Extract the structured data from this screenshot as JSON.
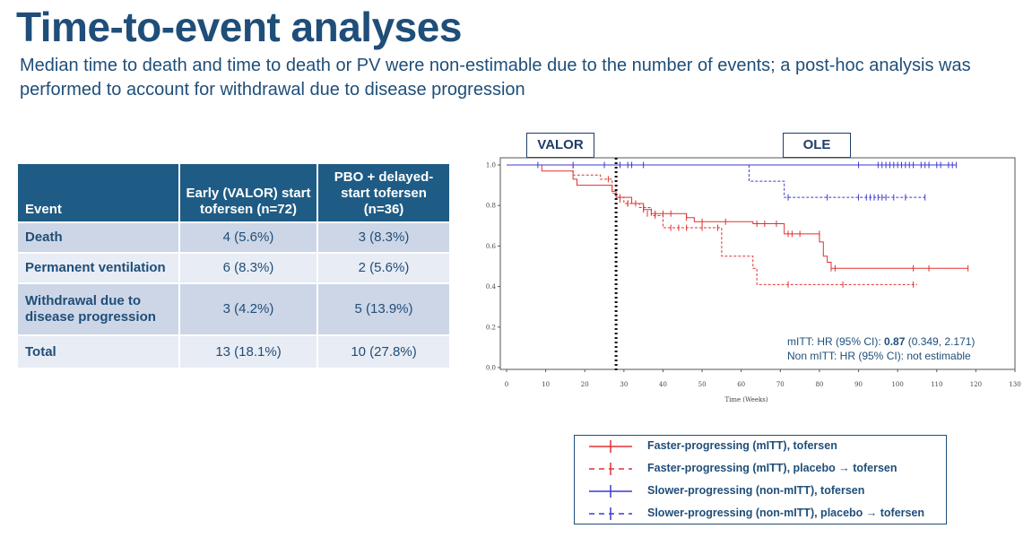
{
  "title": "Time-to-event analyses",
  "subtitle": "Median time to death and time to death or PV were non-estimable due to the number of events; a post-hoc analysis was performed to account for withdrawal due to disease progression",
  "table": {
    "headers": [
      "Event",
      "Early (VALOR) start tofersen (n=72)",
      "PBO + delayed-start tofersen (n=36)"
    ],
    "rows": [
      {
        "event": "Death",
        "early": "4 (5.6%)",
        "delayed": "3 (8.3%)"
      },
      {
        "event": "Permanent ventilation",
        "early": "6 (8.3%)",
        "delayed": "2 (5.6%)"
      },
      {
        "event": "Withdrawal due to disease progression",
        "early": "3 (4.2%)",
        "delayed": "5 (13.9%)"
      },
      {
        "event": "Total",
        "early": "13 (18.1%)",
        "delayed": "10 (27.8%)"
      }
    ]
  },
  "phases": {
    "valor": "VALOR",
    "ole": "OLE"
  },
  "chart_data": {
    "type": "line",
    "xlabel": "Time (Weeks)",
    "ylabel": "",
    "xlim": [
      0,
      130
    ],
    "ylim": [
      0,
      1.0
    ],
    "xticks": [
      0,
      10,
      20,
      30,
      40,
      50,
      60,
      70,
      80,
      90,
      100,
      110,
      120,
      130
    ],
    "yticks": [
      "0.0",
      "0.2",
      "0.4",
      "0.6",
      "0.8",
      "1.0"
    ],
    "reference_line_x": 28,
    "annotations": {
      "hr_prefix": "mITT: HR (95% CI): ",
      "hr_value": "0.87",
      "hr_ci": " (0.349, 2.171)",
      "non_mitt": "Non mITT: HR (95% CI): not estimable"
    },
    "series": [
      {
        "name": "Faster-progressing (mITT), tofersen",
        "color": "#e03131",
        "dash": false,
        "steps": [
          [
            0,
            1.0
          ],
          [
            9,
            0.97
          ],
          [
            17,
            0.93
          ],
          [
            18,
            0.9
          ],
          [
            24,
            0.9
          ],
          [
            27,
            0.87
          ],
          [
            28,
            0.84
          ],
          [
            32,
            0.81
          ],
          [
            35,
            0.78
          ],
          [
            37,
            0.76
          ],
          [
            46,
            0.74
          ],
          [
            48,
            0.72
          ],
          [
            63,
            0.71
          ],
          [
            71,
            0.66
          ],
          [
            80,
            0.62
          ],
          [
            81,
            0.55
          ],
          [
            82,
            0.52
          ],
          [
            83,
            0.49
          ],
          [
            118,
            0.49
          ]
        ],
        "censored": [
          [
            29,
            0.83
          ],
          [
            31,
            0.81
          ],
          [
            33,
            0.81
          ],
          [
            35,
            0.78
          ],
          [
            36,
            0.76
          ],
          [
            38,
            0.76
          ],
          [
            40,
            0.76
          ],
          [
            42,
            0.76
          ],
          [
            46,
            0.74
          ],
          [
            50,
            0.72
          ],
          [
            56,
            0.72
          ],
          [
            64,
            0.71
          ],
          [
            66,
            0.71
          ],
          [
            69,
            0.71
          ],
          [
            72,
            0.66
          ],
          [
            73,
            0.66
          ],
          [
            75,
            0.66
          ],
          [
            80,
            0.66
          ],
          [
            83,
            0.49
          ],
          [
            84,
            0.49
          ],
          [
            104,
            0.49
          ],
          [
            108,
            0.49
          ],
          [
            118,
            0.49
          ]
        ]
      },
      {
        "name": "Faster-progressing (mITT), placebo → tofersen",
        "color": "#e03131",
        "dash": true,
        "steps": [
          [
            0,
            1.0
          ],
          [
            17,
            0.95
          ],
          [
            24,
            0.93
          ],
          [
            27,
            0.86
          ],
          [
            28,
            0.84
          ],
          [
            30,
            0.81
          ],
          [
            34,
            0.79
          ],
          [
            37,
            0.75
          ],
          [
            40,
            0.69
          ],
          [
            52,
            0.69
          ],
          [
            55,
            0.55
          ],
          [
            63,
            0.49
          ],
          [
            64,
            0.41
          ],
          [
            105,
            0.41
          ]
        ],
        "censored": [
          [
            26,
            0.93
          ],
          [
            29,
            0.84
          ],
          [
            31,
            0.81
          ],
          [
            35,
            0.79
          ],
          [
            38,
            0.75
          ],
          [
            42,
            0.69
          ],
          [
            44,
            0.69
          ],
          [
            46,
            0.69
          ],
          [
            50,
            0.69
          ],
          [
            54,
            0.69
          ],
          [
            72,
            0.41
          ],
          [
            86,
            0.41
          ],
          [
            104,
            0.41
          ]
        ]
      },
      {
        "name": "Slower-progressing (non-mITT), tofersen",
        "color": "#3a3acf",
        "dash": false,
        "steps": [
          [
            0,
            1.0
          ],
          [
            115,
            1.0
          ]
        ],
        "censored": [
          [
            8,
            1.0
          ],
          [
            17,
            1.0
          ],
          [
            25,
            1.0
          ],
          [
            29,
            1.0
          ],
          [
            31,
            1.0
          ],
          [
            32,
            1.0
          ],
          [
            35,
            1.0
          ],
          [
            90,
            1.0
          ],
          [
            95,
            1.0
          ],
          [
            96,
            1.0
          ],
          [
            97,
            1.0
          ],
          [
            98,
            1.0
          ],
          [
            99,
            1.0
          ],
          [
            100,
            1.0
          ],
          [
            101,
            1.0
          ],
          [
            102,
            1.0
          ],
          [
            103,
            1.0
          ],
          [
            104,
            1.0
          ],
          [
            106,
            1.0
          ],
          [
            107,
            1.0
          ],
          [
            108,
            1.0
          ],
          [
            110,
            1.0
          ],
          [
            111,
            1.0
          ],
          [
            113,
            1.0
          ],
          [
            114,
            1.0
          ],
          [
            115,
            1.0
          ]
        ]
      },
      {
        "name": "Slower-progressing (non-mITT), placebo → tofersen",
        "color": "#3a3acf",
        "dash": true,
        "steps": [
          [
            62,
            1.0
          ],
          [
            62,
            0.92
          ],
          [
            70,
            0.92
          ],
          [
            71,
            0.84
          ],
          [
            107,
            0.84
          ]
        ],
        "censored": [
          [
            72,
            0.84
          ],
          [
            82,
            0.84
          ],
          [
            90,
            0.84
          ],
          [
            92,
            0.84
          ],
          [
            93,
            0.84
          ],
          [
            94,
            0.84
          ],
          [
            95,
            0.84
          ],
          [
            96,
            0.84
          ],
          [
            97,
            0.84
          ],
          [
            99,
            0.84
          ],
          [
            102,
            0.84
          ],
          [
            107,
            0.84
          ]
        ]
      }
    ]
  },
  "legend": [
    {
      "label": "Faster-progressing (mITT), tofersen",
      "color": "#e03131",
      "dash": false
    },
    {
      "label": "Faster-progressing (mITT), placebo → tofersen",
      "color": "#e03131",
      "dash": true
    },
    {
      "label": "Slower-progressing (non-mITT), tofersen",
      "color": "#3a3acf",
      "dash": false
    },
    {
      "label": "Slower-progressing (non-mITT), placebo → tofersen",
      "color": "#3a3acf",
      "dash": true
    }
  ]
}
